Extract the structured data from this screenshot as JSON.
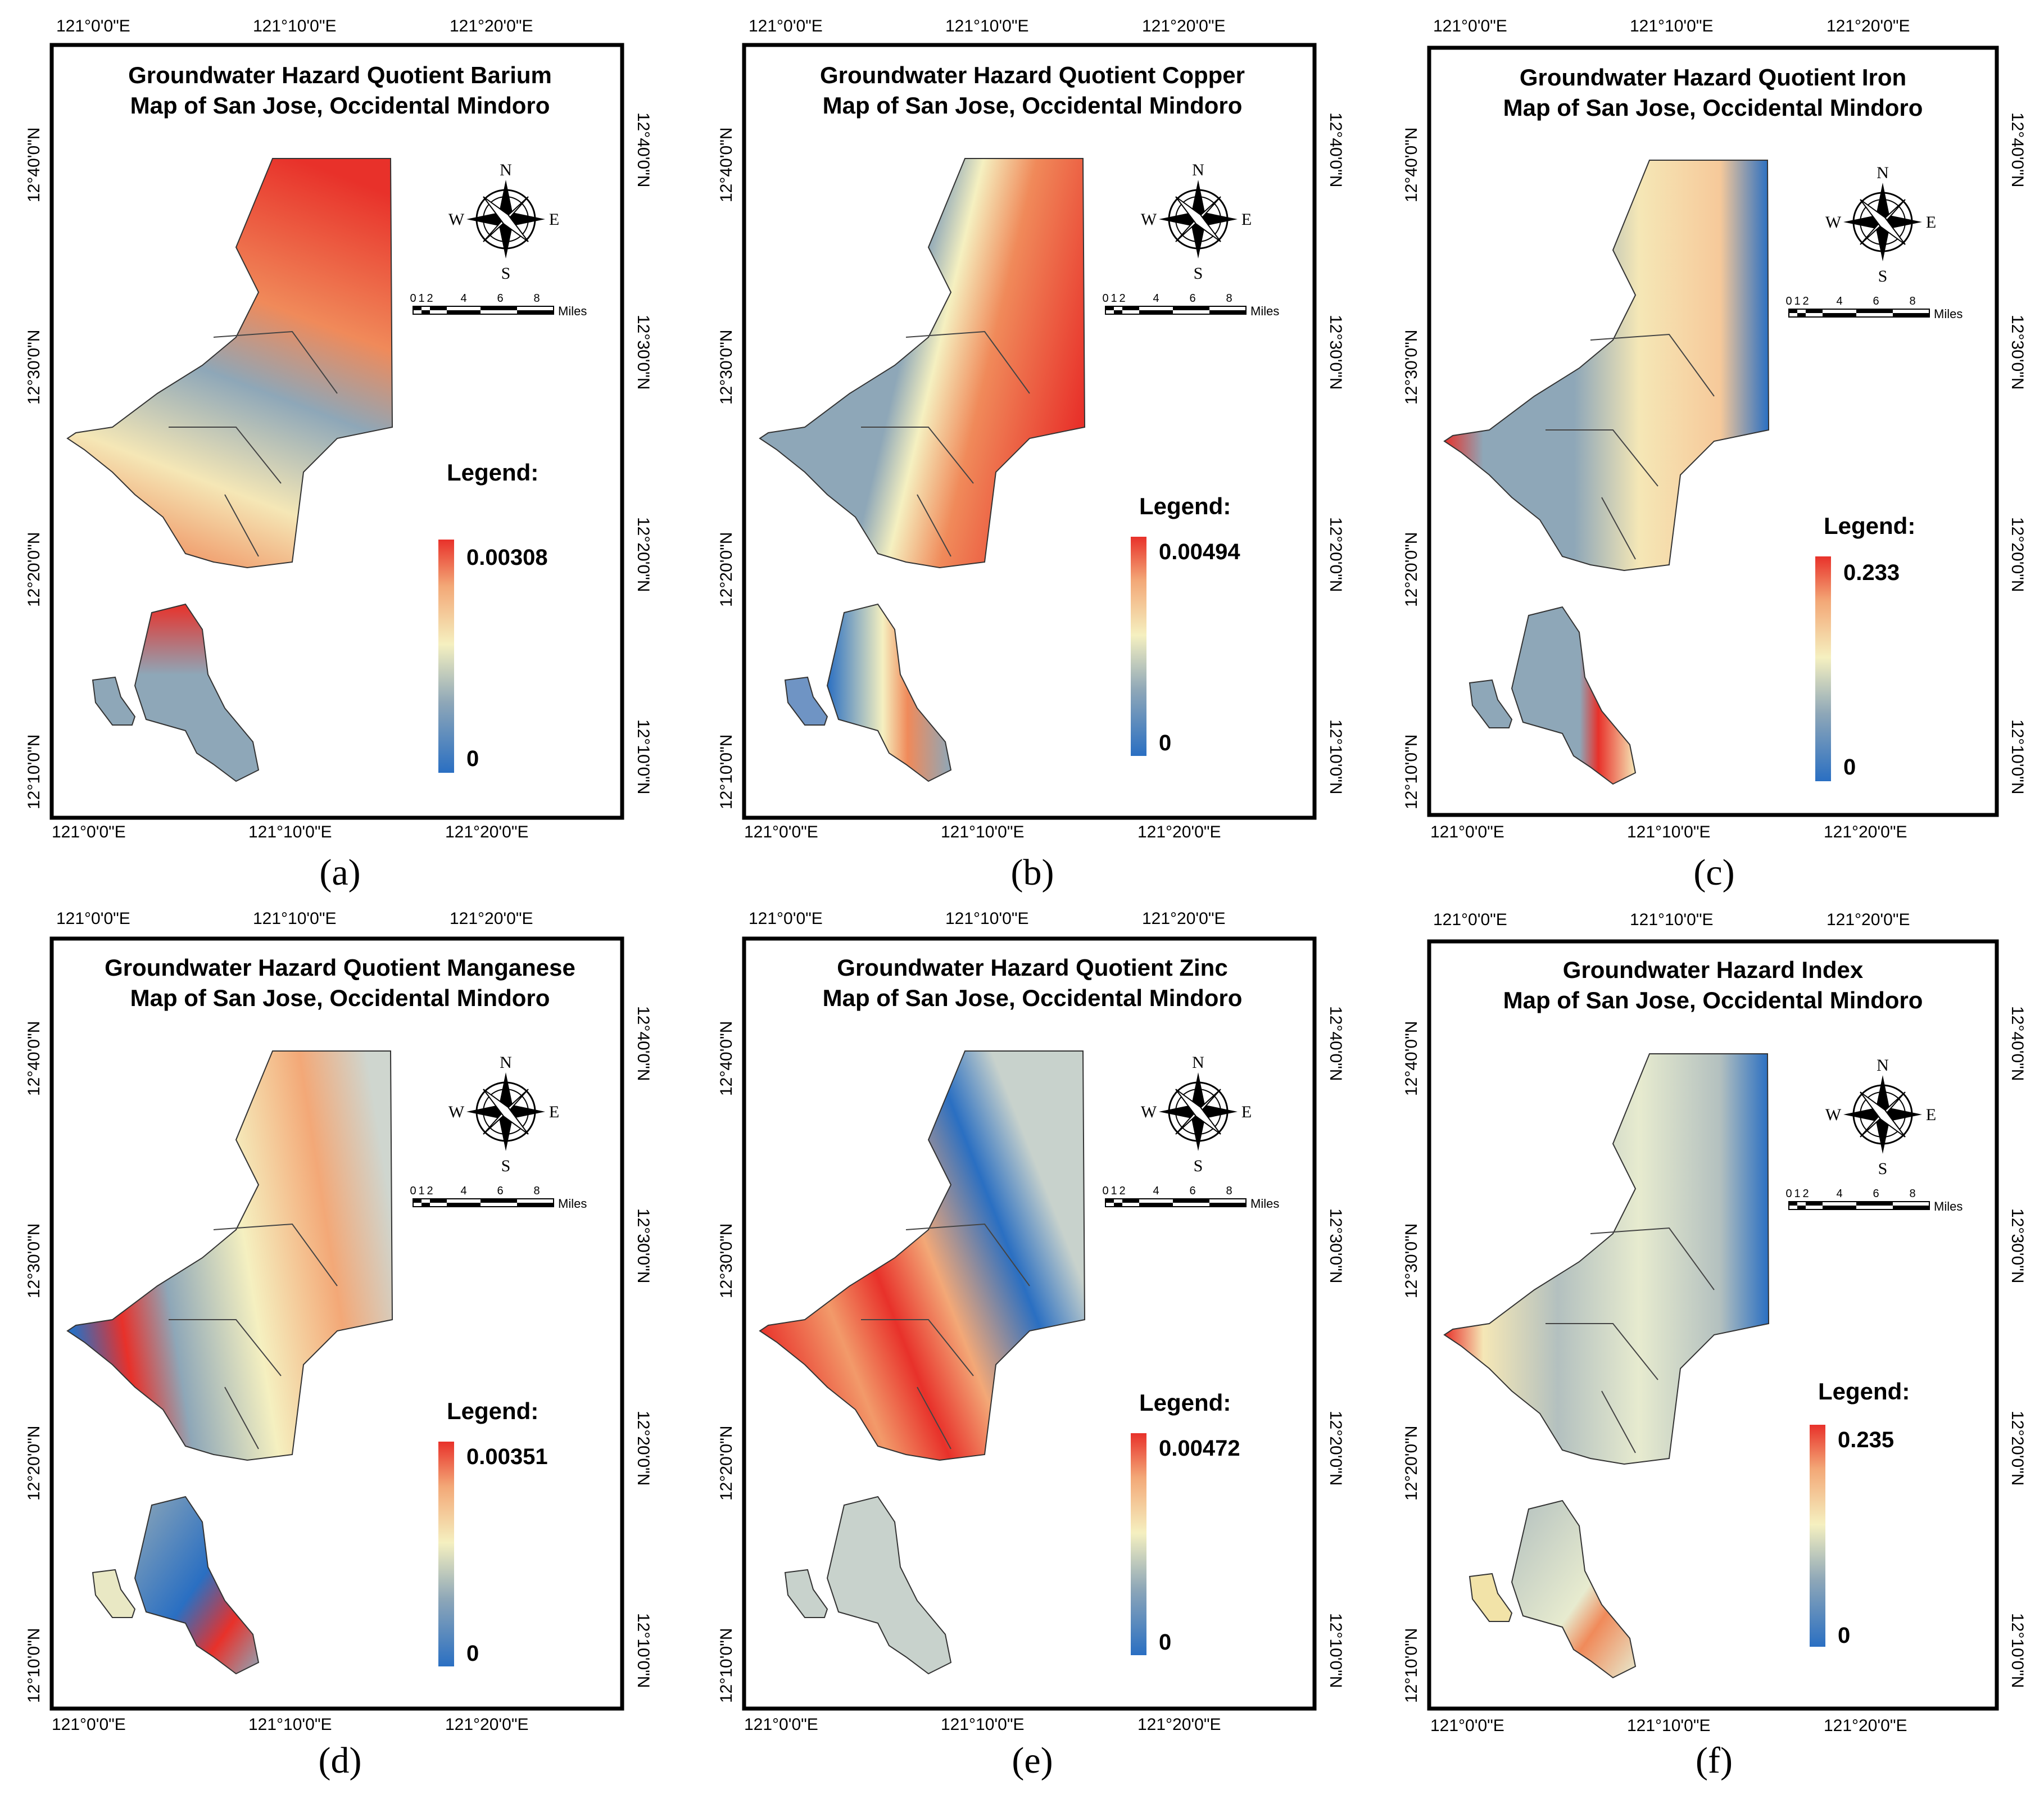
{
  "axis_ticks": {
    "top": [
      "121°0'0\"E",
      "121°10'0\"E",
      "121°20'0\"E"
    ],
    "bottom": [
      "121°0'0\"E",
      "121°10'0\"E",
      "121°20'0\"E"
    ],
    "left": [
      "12°40'0\"N",
      "12°30'0\"N",
      "12°20'0\"N",
      "12°10'0\"N"
    ],
    "right": [
      "12°40'0\"N",
      "12°30'0\"N",
      "12°20'0\"N",
      "12°10'0\"N"
    ]
  },
  "compass": {
    "n": "N",
    "s": "S",
    "e": "E",
    "w": "W"
  },
  "scale_bar": {
    "ticks": [
      "0",
      "1",
      "2",
      "4",
      "6",
      "8"
    ],
    "unit": "Miles"
  },
  "legend_title": "Legend:",
  "colors": {
    "high": "#e8312a",
    "mid": "#f5f0c0",
    "low": "#2a6fc2",
    "neutral": "#8ea7b8",
    "border": "#000000"
  },
  "panels": [
    {
      "id": "a",
      "caption": "(a)",
      "title_line1": "Groundwater Hazard Quotient Barium",
      "title_line2": "Map of San Jose, Occidental Mindoro",
      "legend_max": "0.00308",
      "legend_min": "0",
      "dominant_fill": "#f08a5a"
    },
    {
      "id": "b",
      "caption": "(b)",
      "title_line1": "Groundwater Hazard Quotient Copper",
      "title_line2": "Map of San Jose, Occidental Mindoro",
      "legend_max": "0.00494",
      "legend_min": "0",
      "dominant_fill": "#8fa8ba"
    },
    {
      "id": "c",
      "caption": "(c)",
      "title_line1": "Groundwater Hazard Quotient Iron",
      "title_line2": "Map of San Jose, Occidental Mindoro",
      "legend_max": "0.233",
      "legend_min": "0",
      "dominant_fill": "#f6c99a"
    },
    {
      "id": "d",
      "caption": "(d)",
      "title_line1": "Groundwater Hazard Quotient Manganese",
      "title_line2": "Map of San Jose, Occidental Mindoro",
      "legend_max": "0.00351",
      "legend_min": "0",
      "dominant_fill": "#cfd6cf"
    },
    {
      "id": "e",
      "caption": "(e)",
      "title_line1": "Groundwater Hazard Quotient Zinc",
      "title_line2": "Map of San Jose, Occidental Mindoro",
      "legend_max": "0.00472",
      "legend_min": "0",
      "dominant_fill": "#f29a6a"
    },
    {
      "id": "f",
      "caption": "(f)",
      "title_line1": "Groundwater Hazard Index",
      "title_line2": "Map of San Jose, Occidental Mindoro",
      "legend_max": "0.235",
      "legend_min": "0",
      "dominant_fill": "#e7ebcf"
    }
  ]
}
